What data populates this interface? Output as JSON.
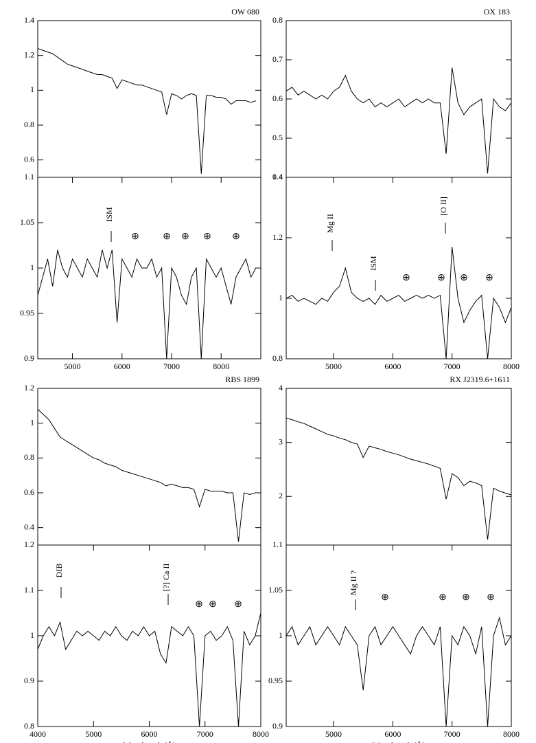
{
  "chart_data": [
    {
      "type": "line",
      "title": "OW 080",
      "xlim": [
        4300,
        8800
      ],
      "ylim": [
        0.5,
        1.4
      ],
      "yticks": [
        0.6,
        0.8,
        1,
        1.2,
        1.4
      ],
      "x": [
        4300,
        4400,
        4500,
        4600,
        4700,
        4800,
        4900,
        5000,
        5100,
        5200,
        5300,
        5400,
        5500,
        5600,
        5700,
        5800,
        5900,
        6000,
        6100,
        6200,
        6300,
        6400,
        6500,
        6600,
        6700,
        6800,
        6900,
        7000,
        7100,
        7200,
        7300,
        7400,
        7500,
        7600,
        7700,
        7800,
        7900,
        8000,
        8100,
        8200,
        8300,
        8400,
        8500,
        8600,
        8700
      ],
      "series": [
        {
          "color": "#000000",
          "values": [
            1.24,
            1.23,
            1.22,
            1.21,
            1.19,
            1.17,
            1.15,
            1.14,
            1.13,
            1.12,
            1.11,
            1.1,
            1.09,
            1.09,
            1.08,
            1.07,
            1.01,
            1.06,
            1.05,
            1.04,
            1.03,
            1.03,
            1.02,
            1.01,
            1.0,
            0.99,
            0.86,
            0.98,
            0.97,
            0.95,
            0.97,
            0.98,
            0.97,
            0.52,
            0.97,
            0.97,
            0.96,
            0.96,
            0.95,
            0.92,
            0.94,
            0.94,
            0.94,
            0.93,
            0.94
          ]
        }
      ]
    },
    {
      "type": "line",
      "xlim": [
        4300,
        8800
      ],
      "ylim": [
        0.9,
        1.1
      ],
      "yticks": [
        0.9,
        0.95,
        1,
        1.05,
        1.1
      ],
      "xticks": [
        5000,
        6000,
        7000,
        8000
      ],
      "annotations": [
        "ISM",
        "⊕",
        "⊕",
        "⊕",
        "⊕",
        "⊕"
      ],
      "x": [
        4300,
        4400,
        4500,
        4600,
        4700,
        4800,
        4900,
        5000,
        5100,
        5200,
        5300,
        5400,
        5500,
        5600,
        5700,
        5800,
        5900,
        6000,
        6100,
        6200,
        6300,
        6400,
        6500,
        6600,
        6700,
        6800,
        6900,
        7000,
        7100,
        7200,
        7300,
        7400,
        7500,
        7600,
        7700,
        7800,
        7900,
        8000,
        8100,
        8200,
        8300,
        8400,
        8500,
        8600,
        8700
      ],
      "series": [
        {
          "color": "#000000",
          "values": [
            0.97,
            0.99,
            1.01,
            0.98,
            1.02,
            1.0,
            0.99,
            1.01,
            1.0,
            0.99,
            1.01,
            1.0,
            0.99,
            1.02,
            1.0,
            1.02,
            0.94,
            1.01,
            1.0,
            0.99,
            1.01,
            1.0,
            1.0,
            1.01,
            0.99,
            1.0,
            0.9,
            1.0,
            0.99,
            0.97,
            0.96,
            0.99,
            1.0,
            0.9,
            1.01,
            1.0,
            0.99,
            1.0,
            0.98,
            0.96,
            0.99,
            1.0,
            1.01,
            0.99,
            1.0
          ]
        }
      ]
    },
    {
      "type": "line",
      "title": "OX 183",
      "xlim": [
        4200,
        8000
      ],
      "ylim": [
        0.4,
        0.8
      ],
      "yticks": [
        0.4,
        0.5,
        0.6,
        0.7,
        0.8
      ],
      "x": [
        4200,
        4300,
        4400,
        4500,
        4600,
        4700,
        4800,
        4900,
        5000,
        5100,
        5200,
        5300,
        5400,
        5500,
        5600,
        5700,
        5800,
        5900,
        6000,
        6100,
        6200,
        6300,
        6400,
        6500,
        6600,
        6700,
        6800,
        6900,
        7000,
        7100,
        7200,
        7300,
        7400,
        7500,
        7600,
        7700,
        7800,
        7900,
        8000
      ],
      "series": [
        {
          "color": "#000000",
          "values": [
            0.62,
            0.63,
            0.61,
            0.62,
            0.61,
            0.6,
            0.61,
            0.6,
            0.62,
            0.63,
            0.66,
            0.62,
            0.6,
            0.59,
            0.6,
            0.58,
            0.59,
            0.58,
            0.59,
            0.6,
            0.58,
            0.59,
            0.6,
            0.59,
            0.6,
            0.59,
            0.59,
            0.46,
            0.68,
            0.59,
            0.56,
            0.58,
            0.59,
            0.6,
            0.41,
            0.6,
            0.58,
            0.57,
            0.59
          ]
        }
      ]
    },
    {
      "type": "line",
      "xlim": [
        4200,
        8000
      ],
      "ylim": [
        0.8,
        1.4
      ],
      "yticks": [
        0.8,
        1,
        1.2,
        1.4
      ],
      "xticks": [
        5000,
        6000,
        7000,
        8000
      ],
      "annotations": [
        "Mg II",
        "ISM",
        "[O II]",
        "⊕",
        "⊕",
        "⊕",
        "⊕"
      ],
      "x": [
        4200,
        4300,
        4400,
        4500,
        4600,
        4700,
        4800,
        4900,
        5000,
        5100,
        5200,
        5300,
        5400,
        5500,
        5600,
        5700,
        5800,
        5900,
        6000,
        6100,
        6200,
        6300,
        6400,
        6500,
        6600,
        6700,
        6800,
        6900,
        7000,
        7100,
        7200,
        7300,
        7400,
        7500,
        7600,
        7700,
        7800,
        7900,
        8000
      ],
      "series": [
        {
          "color": "#000000",
          "values": [
            1.0,
            1.01,
            0.99,
            1.0,
            0.99,
            0.98,
            1.0,
            0.99,
            1.02,
            1.04,
            1.1,
            1.02,
            1.0,
            0.99,
            1.0,
            0.98,
            1.01,
            0.99,
            1.0,
            1.01,
            0.99,
            1.0,
            1.01,
            1.0,
            1.01,
            1.0,
            1.01,
            0.8,
            1.17,
            1.0,
            0.92,
            0.96,
            0.99,
            1.01,
            0.8,
            1.0,
            0.97,
            0.92,
            0.97
          ]
        }
      ]
    },
    {
      "type": "line",
      "title": "RBS 1899",
      "xlim": [
        4000,
        8000
      ],
      "ylim": [
        0.3,
        1.2
      ],
      "yticks": [
        0.4,
        0.6,
        0.8,
        1,
        1.2
      ],
      "x": [
        4000,
        4100,
        4200,
        4300,
        4400,
        4500,
        4600,
        4700,
        4800,
        4900,
        5000,
        5100,
        5200,
        5300,
        5400,
        5500,
        5600,
        5700,
        5800,
        5900,
        6000,
        6100,
        6200,
        6300,
        6400,
        6500,
        6600,
        6700,
        6800,
        6900,
        7000,
        7100,
        7200,
        7300,
        7400,
        7500,
        7600,
        7700,
        7800,
        7900,
        8000
      ],
      "series": [
        {
          "color": "#000000",
          "values": [
            1.08,
            1.05,
            1.02,
            0.97,
            0.92,
            0.9,
            0.88,
            0.86,
            0.84,
            0.82,
            0.8,
            0.79,
            0.77,
            0.76,
            0.75,
            0.73,
            0.72,
            0.71,
            0.7,
            0.69,
            0.68,
            0.67,
            0.66,
            0.64,
            0.65,
            0.64,
            0.63,
            0.63,
            0.62,
            0.52,
            0.62,
            0.61,
            0.61,
            0.61,
            0.6,
            0.6,
            0.32,
            0.6,
            0.59,
            0.6,
            0.6
          ]
        }
      ]
    },
    {
      "type": "line",
      "xlim": [
        4000,
        8000
      ],
      "ylim": [
        0.8,
        1.2
      ],
      "yticks": [
        0.8,
        0.9,
        1,
        1.1,
        1.2
      ],
      "xticks": [
        4000,
        5000,
        6000,
        7000,
        8000
      ],
      "xlabel": "Wavelength (Å)",
      "annotations": [
        "DIB",
        "[?] Ca II",
        "⊕",
        "⊕",
        "⊕"
      ],
      "x": [
        4000,
        4100,
        4200,
        4300,
        4400,
        4500,
        4600,
        4700,
        4800,
        4900,
        5000,
        5100,
        5200,
        5300,
        5400,
        5500,
        5600,
        5700,
        5800,
        5900,
        6000,
        6100,
        6200,
        6300,
        6400,
        6500,
        6600,
        6700,
        6800,
        6900,
        7000,
        7100,
        7200,
        7300,
        7400,
        7500,
        7600,
        7700,
        7800,
        7900,
        8000
      ],
      "series": [
        {
          "color": "#000000",
          "values": [
            0.97,
            1.0,
            1.02,
            1.0,
            1.03,
            0.97,
            0.99,
            1.01,
            1.0,
            1.01,
            1.0,
            0.99,
            1.01,
            1.0,
            1.02,
            1.0,
            0.99,
            1.01,
            1.0,
            1.02,
            1.0,
            1.01,
            0.96,
            0.94,
            1.02,
            1.01,
            1.0,
            1.02,
            1.0,
            0.8,
            1.0,
            1.01,
            0.99,
            1.0,
            1.02,
            0.99,
            0.8,
            1.01,
            0.98,
            1.0,
            1.05
          ]
        }
      ]
    },
    {
      "type": "line",
      "title": "RX J2319.6+1611",
      "xlim": [
        4200,
        8000
      ],
      "ylim": [
        1.1,
        4
      ],
      "yticks": [
        2,
        3,
        4
      ],
      "x": [
        4200,
        4300,
        4400,
        4500,
        4600,
        4700,
        4800,
        4900,
        5000,
        5100,
        5200,
        5300,
        5400,
        5500,
        5600,
        5700,
        5800,
        5900,
        6000,
        6100,
        6200,
        6300,
        6400,
        6500,
        6600,
        6700,
        6800,
        6900,
        7000,
        7100,
        7200,
        7300,
        7400,
        7500,
        7600,
        7700,
        7800,
        7900,
        8000
      ],
      "series": [
        {
          "color": "#000000",
          "values": [
            3.45,
            3.42,
            3.38,
            3.35,
            3.3,
            3.25,
            3.2,
            3.15,
            3.12,
            3.08,
            3.05,
            3.0,
            2.97,
            2.72,
            2.93,
            2.9,
            2.87,
            2.83,
            2.8,
            2.77,
            2.73,
            2.69,
            2.66,
            2.63,
            2.6,
            2.56,
            2.52,
            1.95,
            2.42,
            2.35,
            2.2,
            2.28,
            2.25,
            2.2,
            1.2,
            2.15,
            2.1,
            2.06,
            2.03
          ]
        }
      ]
    },
    {
      "type": "line",
      "xlim": [
        4200,
        8000
      ],
      "ylim": [
        0.9,
        1.1
      ],
      "yticks": [
        0.9,
        0.95,
        1,
        1.05,
        1.1
      ],
      "xticks": [
        5000,
        6000,
        7000,
        8000
      ],
      "xlabel": "Wavelength (Å)",
      "annotations": [
        "Mg II ?",
        "⊕",
        "⊕",
        "⊕",
        "⊕"
      ],
      "x": [
        4200,
        4300,
        4400,
        4500,
        4600,
        4700,
        4800,
        4900,
        5000,
        5100,
        5200,
        5300,
        5400,
        5500,
        5600,
        5700,
        5800,
        5900,
        6000,
        6100,
        6200,
        6300,
        6400,
        6500,
        6600,
        6700,
        6800,
        6900,
        7000,
        7100,
        7200,
        7300,
        7400,
        7500,
        7600,
        7700,
        7800,
        7900,
        8000
      ],
      "series": [
        {
          "color": "#000000",
          "values": [
            1.0,
            1.01,
            0.99,
            1.0,
            1.01,
            0.99,
            1.0,
            1.01,
            1.0,
            0.99,
            1.01,
            1.0,
            0.99,
            0.94,
            1.0,
            1.01,
            0.99,
            1.0,
            1.01,
            1.0,
            0.99,
            0.98,
            1.0,
            1.01,
            1.0,
            0.99,
            1.01,
            0.9,
            1.0,
            0.99,
            1.01,
            1.0,
            0.98,
            1.01,
            0.9,
            1.0,
            1.02,
            0.99,
            1.0
          ]
        }
      ]
    }
  ]
}
